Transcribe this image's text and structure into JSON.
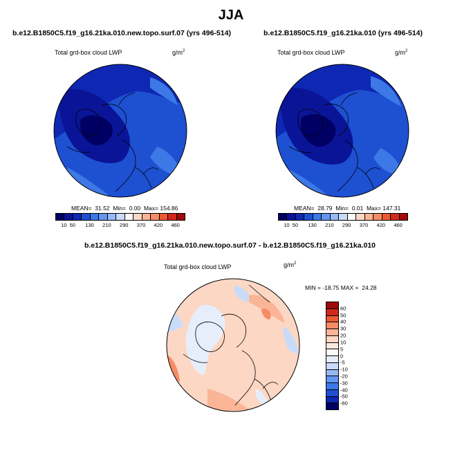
{
  "figure": {
    "season_title": "JJA",
    "variable_label": "Total grd-box cloud LWP",
    "units_base": "g/m",
    "units_exp": "2"
  },
  "chart_data": [
    {
      "type": "heatmap",
      "projection": "polar stereographic (north)",
      "title": "b.e12.B1850C5.f19_g16.21ka.010.new.topo.surf.07 (yrs 496-514)",
      "variable": "Total grd-box cloud LWP",
      "stats": {
        "mean_label": "MEAN=",
        "mean": "31.52",
        "min_label": "Min=",
        "min": "0.00",
        "max_label": "Max=",
        "max": "154.86"
      },
      "colorbar": {
        "ticks": [
          "10",
          "50",
          "90",
          "130",
          "170",
          "210",
          "250",
          "290",
          "330",
          "370",
          "400",
          "420",
          "440",
          "460"
        ],
        "tick_labels": [
          "10",
          "50",
          "130",
          "210",
          "290",
          "370",
          "420",
          "460"
        ],
        "colors": [
          "#000064",
          "#0a1496",
          "#0f28b4",
          "#1e50d2",
          "#3c78e6",
          "#6496f0",
          "#96b9f5",
          "#c8dcfa",
          "#fafafa",
          "#fcd7c3",
          "#fab496",
          "#f58c64",
          "#eb5a32",
          "#d2281e",
          "#a00a0a"
        ]
      }
    },
    {
      "type": "heatmap",
      "projection": "polar stereographic (north)",
      "title": "b.e12.B1850C5.f19_g16.21ka.010 (yrs 496-514)",
      "variable": "Total grd-box cloud LWP",
      "stats": {
        "mean_label": "MEAN=",
        "mean": "28.79",
        "min_label": "Min=",
        "min": "0.01",
        "max_label": "Max=",
        "max": "147.31"
      },
      "colorbar": {
        "ticks": [
          "10",
          "50",
          "90",
          "130",
          "170",
          "210",
          "250",
          "290",
          "330",
          "370",
          "400",
          "420",
          "440",
          "460"
        ],
        "tick_labels": [
          "10",
          "50",
          "130",
          "210",
          "290",
          "370",
          "420",
          "460"
        ],
        "colors": [
          "#000064",
          "#0a1496",
          "#0f28b4",
          "#1e50d2",
          "#3c78e6",
          "#6496f0",
          "#96b9f5",
          "#c8dcfa",
          "#fafafa",
          "#fcd7c3",
          "#fab496",
          "#f58c64",
          "#eb5a32",
          "#d2281e",
          "#a00a0a"
        ]
      }
    },
    {
      "type": "heatmap",
      "projection": "polar stereographic (north)",
      "title": "b.e12.B1850C5.f19_g16.21ka.010.new.topo.surf.07 - b.e12.B1850C5.f19_g16.21ka.010",
      "variable": "Total grd-box cloud LWP",
      "stats": {
        "min_label": "MIN =",
        "min": "-18.75",
        "max_label": "MAX =",
        "max": "24.28"
      },
      "colorbar": {
        "orientation": "vertical",
        "tick_labels": [
          "60",
          "50",
          "40",
          "30",
          "20",
          "10",
          "5",
          "0",
          "-5",
          "-10",
          "-20",
          "-30",
          "-40",
          "-50",
          "-60"
        ],
        "colors": [
          "#a00a0a",
          "#d2281e",
          "#eb5a32",
          "#f58c64",
          "#fab496",
          "#fcd7c3",
          "#fbe9df",
          "#fafafa",
          "#e6eefc",
          "#c8dcfa",
          "#96b9f5",
          "#6496f0",
          "#3c78e6",
          "#1e50d2",
          "#0f28b4",
          "#000064"
        ]
      }
    }
  ]
}
